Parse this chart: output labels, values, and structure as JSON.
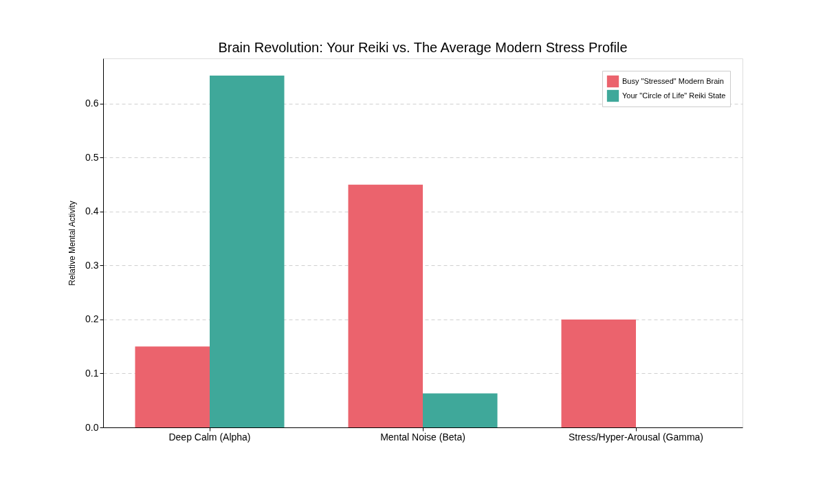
{
  "chart_data": {
    "type": "bar",
    "title": "Brain Revolution: Your Reiki vs. The Average Modern Stress Profile",
    "ylabel": "Relative Mental Activity",
    "categories": [
      "Deep Calm (Alpha)",
      "Mental Noise (Beta)",
      "Stress/Hyper-Arousal (Gamma)"
    ],
    "series": [
      {
        "name": "Busy \"Stressed\" Modern Brain",
        "color": "#eb636d",
        "values": [
          0.15,
          0.45,
          0.2
        ]
      },
      {
        "name": "Your \"Circle of Life\" Reiki State",
        "color": "#3fa89a",
        "values": [
          0.652,
          0.063,
          0
        ]
      }
    ],
    "ylim": [
      0,
      0.684
    ],
    "yticks": [
      {
        "value": 0,
        "label": "0.0"
      },
      0.1,
      0.2,
      0.3,
      0.4,
      0.5,
      0.6
    ],
    "grid": "y",
    "legend": "top right"
  }
}
